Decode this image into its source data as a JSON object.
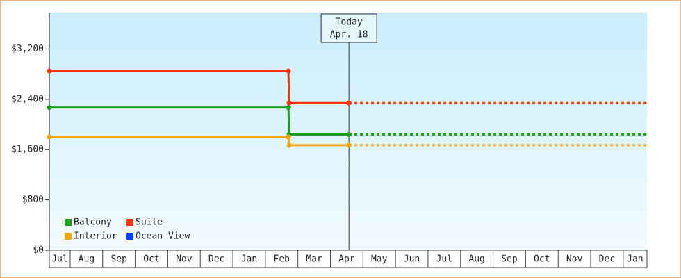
{
  "chart_data": {
    "type": "line",
    "x": [
      0.36,
      7.71,
      7.73,
      9.57,
      18.73
    ],
    "series": [
      {
        "name": "Balcony",
        "color": "#1a9e1a",
        "values": [
          2270,
          2270,
          1840,
          1840,
          1840
        ]
      },
      {
        "name": "Suite",
        "color": "#ff3300",
        "values": [
          2850,
          2850,
          2340,
          2340,
          2340
        ]
      },
      {
        "name": "Interior",
        "color": "#f5a300",
        "values": [
          1800,
          1800,
          1670,
          1670,
          1670
        ]
      },
      {
        "name": "Ocean View",
        "color": "#0044ff",
        "values": [
          null,
          null,
          null,
          null,
          null
        ]
      }
    ],
    "annotation": {
      "title": "Today",
      "label": "Apr. 18",
      "x": 9.57
    },
    "xlim": [
      0.36,
      18.73
    ],
    "xticks": [
      {
        "value": 0,
        "label": "Jul"
      },
      {
        "value": 1,
        "label": "Aug"
      },
      {
        "value": 2,
        "label": "Sep"
      },
      {
        "value": 3,
        "label": "Oct"
      },
      {
        "value": 4,
        "label": "Nov"
      },
      {
        "value": 5,
        "label": "Dec"
      },
      {
        "value": 6,
        "label": "Jan"
      },
      {
        "value": 7,
        "label": "Feb"
      },
      {
        "value": 8,
        "label": "Mar"
      },
      {
        "value": 9,
        "label": "Apr"
      },
      {
        "value": 10,
        "label": "May"
      },
      {
        "value": 11,
        "label": "Jun"
      },
      {
        "value": 12,
        "label": "Jul"
      },
      {
        "value": 13,
        "label": "Aug"
      },
      {
        "value": 14,
        "label": "Sep"
      },
      {
        "value": 15,
        "label": "Oct"
      },
      {
        "value": 16,
        "label": "Nov"
      },
      {
        "value": 17,
        "label": "Dec"
      },
      {
        "value": 18,
        "label": "Jan"
      }
    ],
    "ylim": [
      0,
      3780
    ],
    "yticks": [
      {
        "value": 0,
        "label": "$0"
      },
      {
        "value": 800,
        "label": "$800"
      },
      {
        "value": 1600,
        "label": "$1,600"
      },
      {
        "value": 2400,
        "label": "$2,400"
      },
      {
        "value": 3200,
        "label": "$3,200"
      }
    ],
    "legend": "lower left"
  }
}
